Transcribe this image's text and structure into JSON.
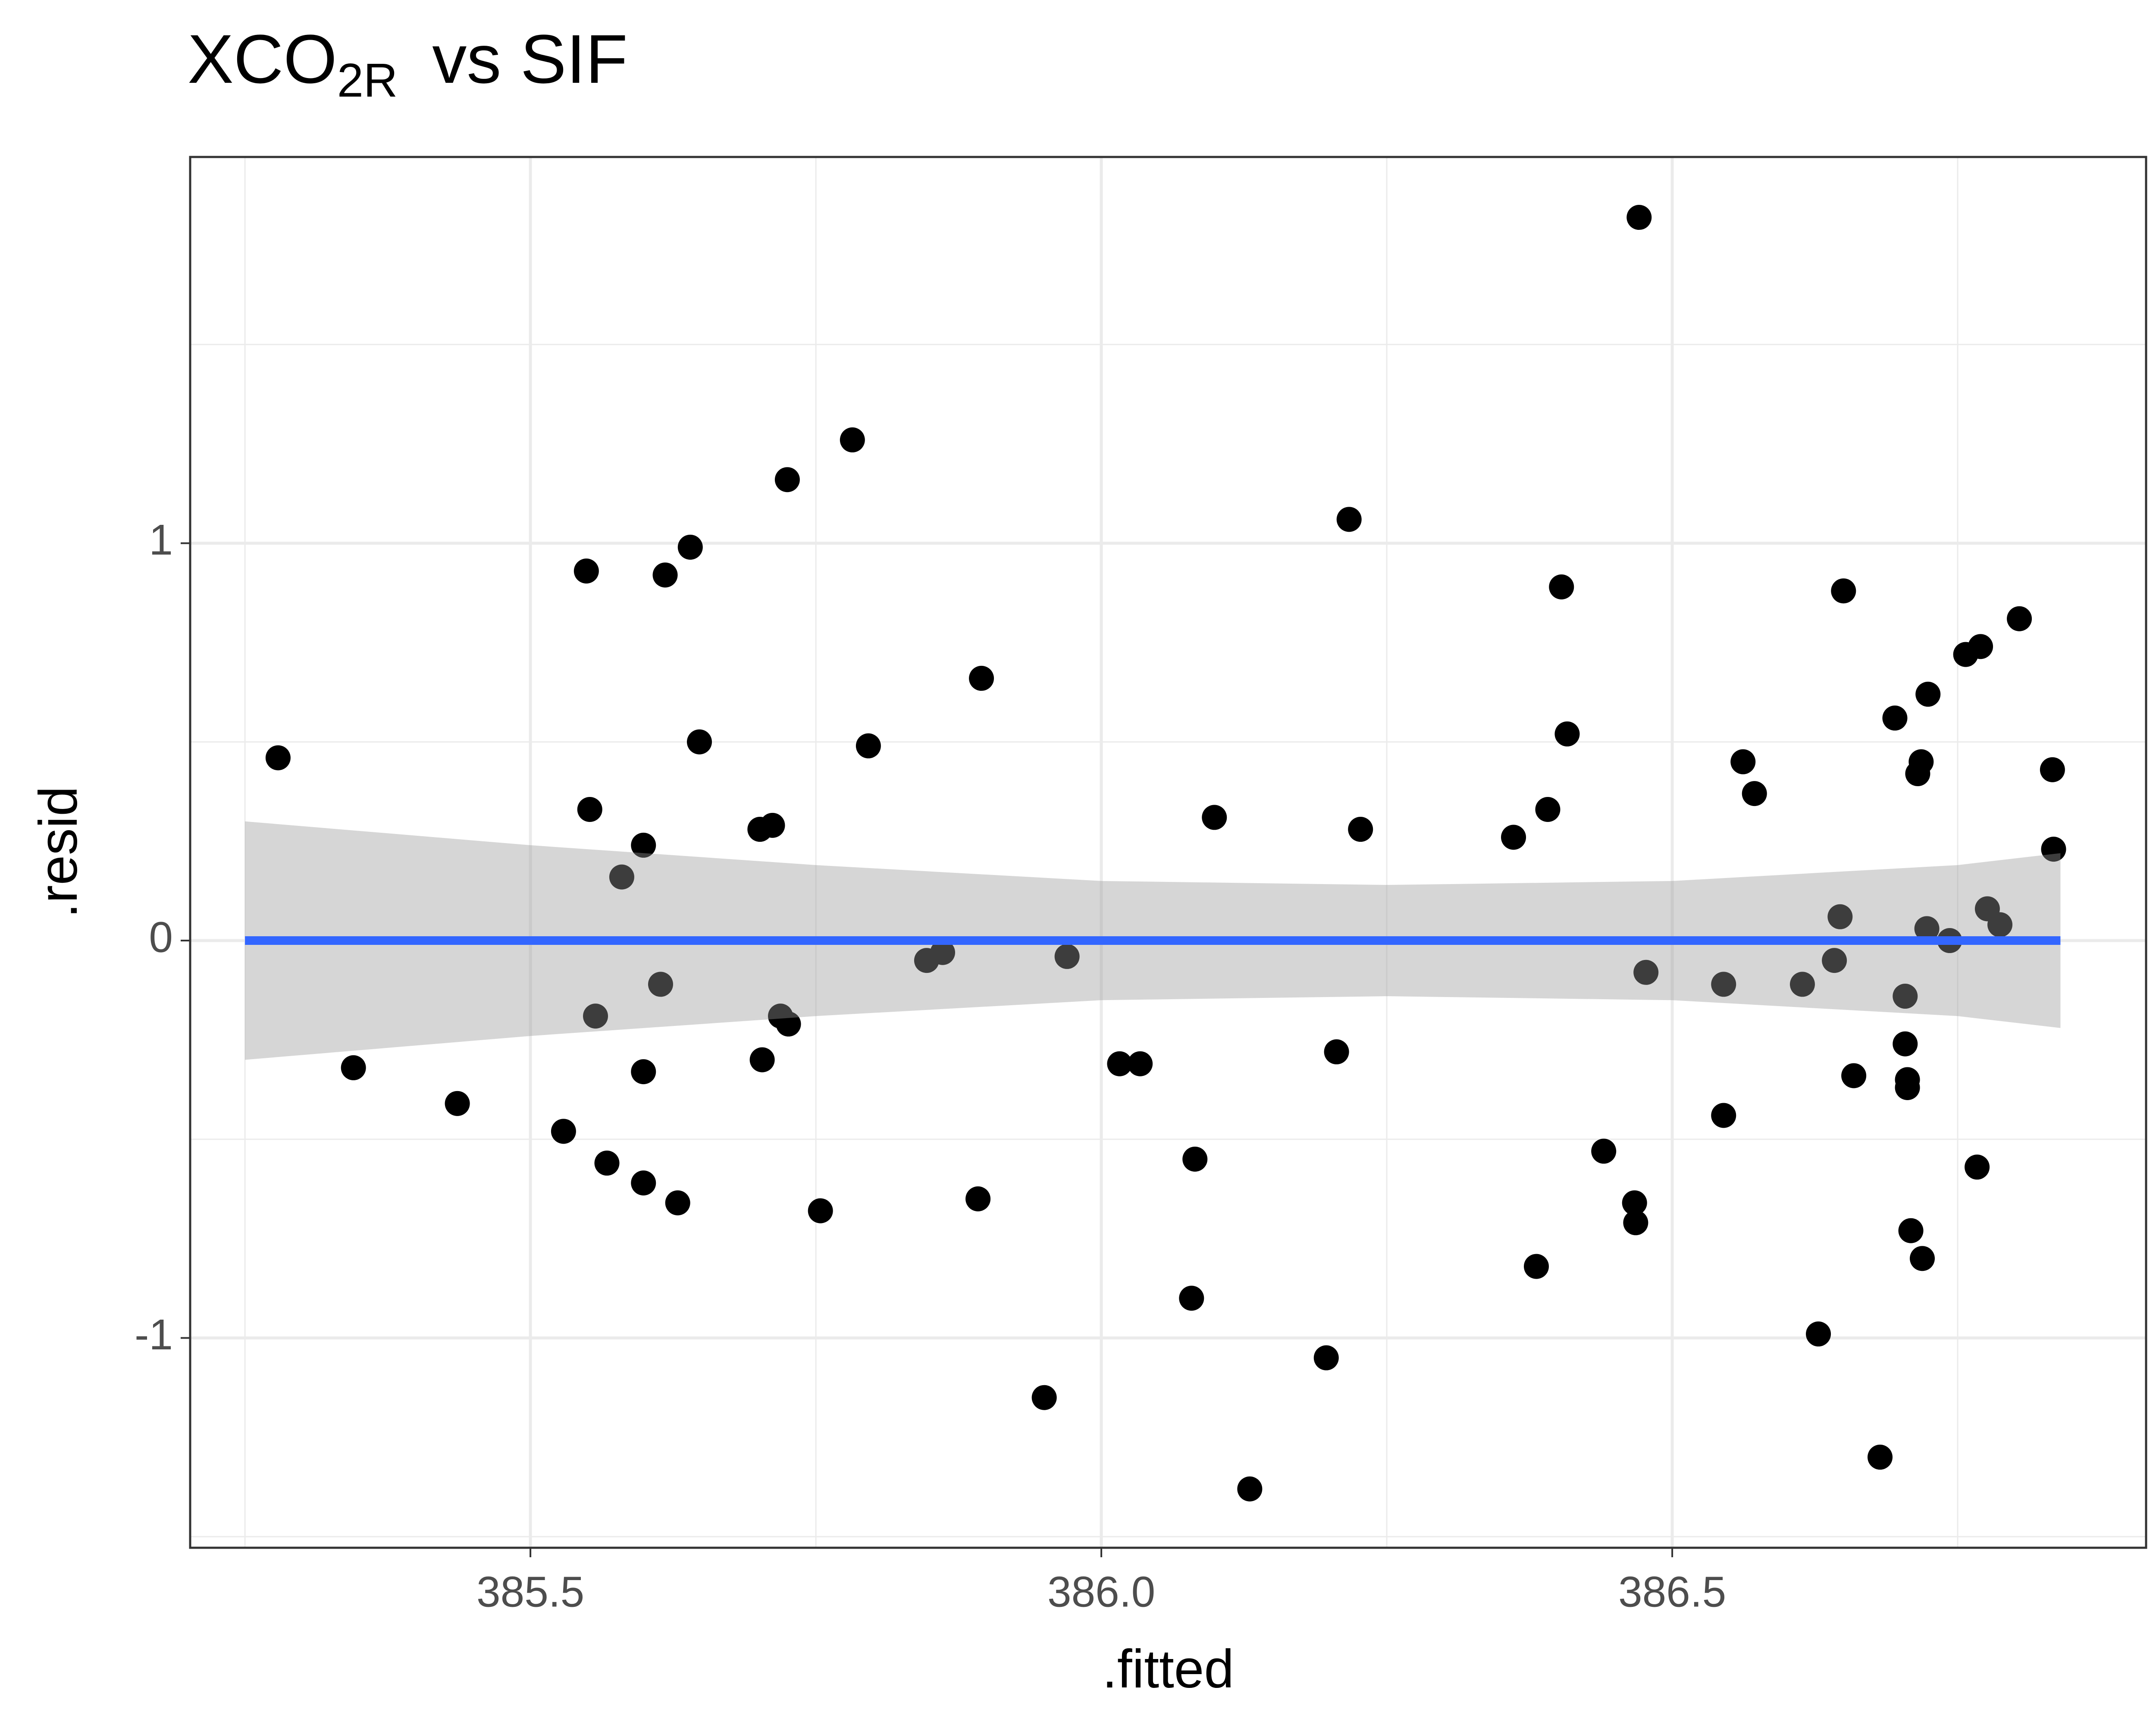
{
  "chart_data": {
    "type": "scatter",
    "title": {
      "main": "XCO",
      "subscript": "2R",
      "rest": "vs SIF"
    },
    "xlabel": ".fitted",
    "ylabel": ".resid",
    "xlim": [
      385.202,
      386.915
    ],
    "ylim": [
      -1.528,
      1.972
    ],
    "xticks": [
      385.5,
      {
        "value": 386,
        "label": "386.0"
      },
      386.5
    ],
    "yticks": [
      -1,
      0,
      1
    ],
    "minor_xticks": [
      385.25,
      385.75,
      386.25,
      386.75
    ],
    "minor_yticks": [
      -1.5,
      -0.5,
      0.5,
      1.5
    ],
    "grid": true,
    "series": [
      {
        "color": "#000000",
        "x": [
          385.279,
          385.345,
          385.436,
          385.529,
          385.549,
          385.552,
          385.557,
          385.567,
          385.58,
          385.599,
          385.599,
          385.599,
          385.614,
          385.618,
          385.629,
          385.64,
          385.648,
          385.701,
          385.703,
          385.712,
          385.719,
          385.725,
          385.726,
          385.754,
          385.782,
          385.796,
          385.847,
          385.861,
          385.892,
          385.895,
          385.95,
          385.97,
          386.016,
          386.034,
          386.079,
          386.082,
          386.099,
          386.13,
          386.197,
          386.206,
          386.217,
          386.227,
          386.361,
          386.381,
          386.391,
          386.403,
          386.408,
          386.44,
          386.467,
          386.468,
          386.471,
          386.477,
          386.545,
          386.545,
          386.562,
          386.572,
          386.614,
          386.628,
          386.642,
          386.647,
          386.65,
          386.659,
          386.682,
          386.695,
          386.704,
          386.704,
          386.706,
          386.706,
          386.709,
          386.715,
          386.718,
          386.719,
          386.723,
          386.724,
          386.743,
          386.757,
          386.767,
          386.77,
          386.776,
          386.787,
          386.804,
          386.833,
          386.834
        ],
        "values": [
          0.46,
          -0.32,
          -0.41,
          -0.48,
          0.93,
          0.33,
          -0.19,
          -0.56,
          0.16,
          0.24,
          -0.33,
          -0.61,
          -0.11,
          0.92,
          -0.66,
          0.99,
          0.5,
          0.28,
          -0.3,
          0.29,
          -0.19,
          1.16,
          -0.21,
          -0.68,
          1.26,
          0.49,
          -0.05,
          -0.03,
          -0.65,
          0.66,
          -1.15,
          -0.04,
          -0.31,
          -0.31,
          -0.9,
          -0.55,
          0.31,
          -1.38,
          -1.05,
          -0.28,
          1.06,
          0.28,
          0.26,
          -0.82,
          0.33,
          0.89,
          0.52,
          -0.53,
          -0.66,
          -0.71,
          1.82,
          -0.08,
          -0.11,
          -0.44,
          0.45,
          0.37,
          -0.11,
          -0.99,
          -0.05,
          0.06,
          0.88,
          -0.34,
          -1.3,
          0.56,
          -0.14,
          -0.26,
          -0.35,
          -0.37,
          -0.73,
          0.42,
          0.45,
          -0.8,
          0.03,
          0.62,
          0.0,
          0.72,
          -0.57,
          0.74,
          0.08,
          0.04,
          0.81,
          0.43,
          0.23
        ]
      }
    ],
    "smooth": {
      "color": "#3366ff",
      "band_color": "#999999",
      "x": [
        385.25,
        385.5,
        385.75,
        386.0,
        386.25,
        386.5,
        386.75,
        386.84
      ],
      "fit": [
        0,
        0,
        0,
        0,
        0,
        0,
        0,
        0
      ],
      "upper": [
        0.3,
        0.24,
        0.19,
        0.15,
        0.14,
        0.15,
        0.19,
        0.22
      ],
      "lower": [
        -0.3,
        -0.24,
        -0.19,
        -0.15,
        -0.14,
        -0.15,
        -0.19,
        -0.22
      ]
    }
  }
}
